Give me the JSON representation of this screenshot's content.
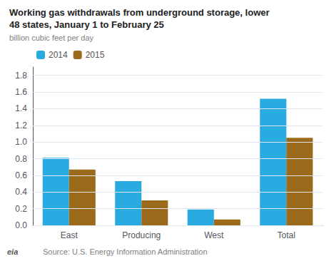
{
  "chart_data": {
    "type": "bar",
    "title": "Working gas withdrawals from underground storage, lower\n48 states, January 1 to February 25",
    "subtitle": "billion cubic feet per day",
    "annotations": [
      "eia",
      "Source: U.S. Energy Information Administration"
    ],
    "categories": [
      "East",
      "Producing",
      "West",
      "Total"
    ],
    "series": [
      {
        "name": "2014",
        "color": "#29ABE2",
        "values": [
          0.81,
          0.53,
          0.19,
          1.52
        ]
      },
      {
        "name": "2015",
        "color": "#9B6A1A",
        "values": [
          0.67,
          0.3,
          0.07,
          1.05
        ]
      }
    ],
    "ylim": [
      0,
      1.9
    ],
    "yticks": [
      {
        "value": 0,
        "label": "0.0"
      },
      0.2,
      0.4,
      0.6,
      0.8,
      {
        "value": 1.0,
        "label": "1.0"
      },
      1.2,
      1.4,
      1.6,
      1.8
    ],
    "grid": true,
    "legend": "upper left"
  }
}
